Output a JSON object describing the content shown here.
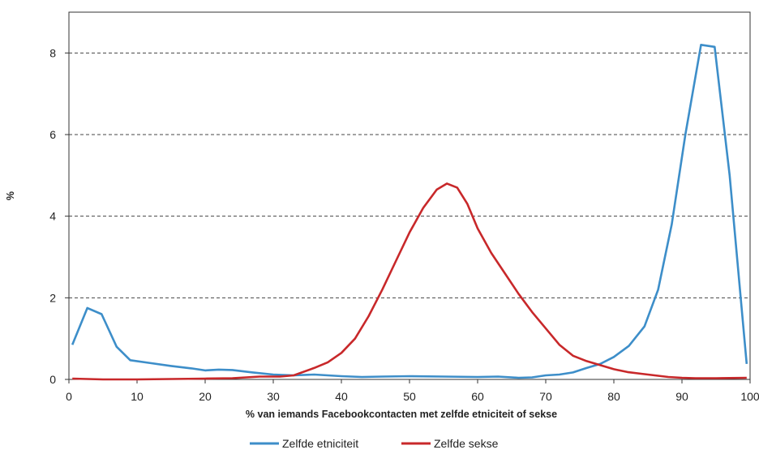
{
  "chart_data": {
    "type": "line",
    "title": "",
    "xlabel": "% van iemands Facebookcontacten met zelfde etniciteit of sekse",
    "ylabel": "%",
    "xlim": [
      0,
      100
    ],
    "ylim": [
      0,
      9
    ],
    "x_ticks": [
      0,
      10,
      20,
      30,
      40,
      50,
      60,
      70,
      80,
      90,
      100
    ],
    "y_ticks": [
      0,
      2,
      4,
      6,
      8
    ],
    "x_tick_labels": [
      "0",
      "10",
      "20",
      "30",
      "40",
      "50",
      "60",
      "70",
      "80",
      "90",
      "100"
    ],
    "y_tick_labels": [
      "0",
      "2",
      "4",
      "6",
      "8"
    ],
    "grid": "horizontal dashed",
    "legend_position": "bottom",
    "series": [
      {
        "name": "Zelfde etniciteit",
        "color": "#3d8ec9",
        "points": [
          [
            0.5,
            0.85
          ],
          [
            2.7,
            1.75
          ],
          [
            4.8,
            1.6
          ],
          [
            7,
            0.8
          ],
          [
            9,
            0.47
          ],
          [
            12,
            0.4
          ],
          [
            15,
            0.33
          ],
          [
            18,
            0.27
          ],
          [
            20,
            0.22
          ],
          [
            22,
            0.24
          ],
          [
            24,
            0.23
          ],
          [
            27,
            0.17
          ],
          [
            30,
            0.12
          ],
          [
            33,
            0.1
          ],
          [
            36,
            0.12
          ],
          [
            40,
            0.08
          ],
          [
            43,
            0.06
          ],
          [
            46,
            0.07
          ],
          [
            50,
            0.08
          ],
          [
            55,
            0.07
          ],
          [
            60,
            0.06
          ],
          [
            63,
            0.07
          ],
          [
            66,
            0.04
          ],
          [
            68,
            0.05
          ],
          [
            70,
            0.1
          ],
          [
            72,
            0.12
          ],
          [
            74,
            0.17
          ],
          [
            76,
            0.28
          ],
          [
            78,
            0.38
          ],
          [
            80,
            0.55
          ],
          [
            82.2,
            0.82
          ],
          [
            84.5,
            1.3
          ],
          [
            86.5,
            2.2
          ],
          [
            88.5,
            3.8
          ],
          [
            90.5,
            6.0
          ],
          [
            92.8,
            8.2
          ],
          [
            94.8,
            8.15
          ],
          [
            97,
            5.0
          ],
          [
            99.5,
            0.38
          ]
        ]
      },
      {
        "name": "Zelfde sekse",
        "color": "#c8282a",
        "points": [
          [
            0.5,
            0.02
          ],
          [
            5,
            0.0
          ],
          [
            10,
            0.0
          ],
          [
            15,
            0.01
          ],
          [
            20,
            0.02
          ],
          [
            24,
            0.03
          ],
          [
            28,
            0.07
          ],
          [
            31,
            0.07
          ],
          [
            33,
            0.1
          ],
          [
            36,
            0.28
          ],
          [
            38,
            0.42
          ],
          [
            40,
            0.65
          ],
          [
            42,
            1.0
          ],
          [
            44,
            1.55
          ],
          [
            46,
            2.2
          ],
          [
            48,
            2.9
          ],
          [
            50,
            3.6
          ],
          [
            52,
            4.2
          ],
          [
            54,
            4.65
          ],
          [
            55.5,
            4.8
          ],
          [
            57,
            4.7
          ],
          [
            58.5,
            4.3
          ],
          [
            60,
            3.7
          ],
          [
            62,
            3.1
          ],
          [
            64,
            2.6
          ],
          [
            66,
            2.1
          ],
          [
            68,
            1.65
          ],
          [
            70,
            1.25
          ],
          [
            72,
            0.85
          ],
          [
            74,
            0.58
          ],
          [
            76,
            0.45
          ],
          [
            78,
            0.35
          ],
          [
            80,
            0.25
          ],
          [
            82,
            0.18
          ],
          [
            84,
            0.14
          ],
          [
            86,
            0.1
          ],
          [
            88,
            0.06
          ],
          [
            90,
            0.04
          ],
          [
            92,
            0.03
          ],
          [
            95,
            0.03
          ],
          [
            99.5,
            0.04
          ]
        ]
      }
    ]
  }
}
